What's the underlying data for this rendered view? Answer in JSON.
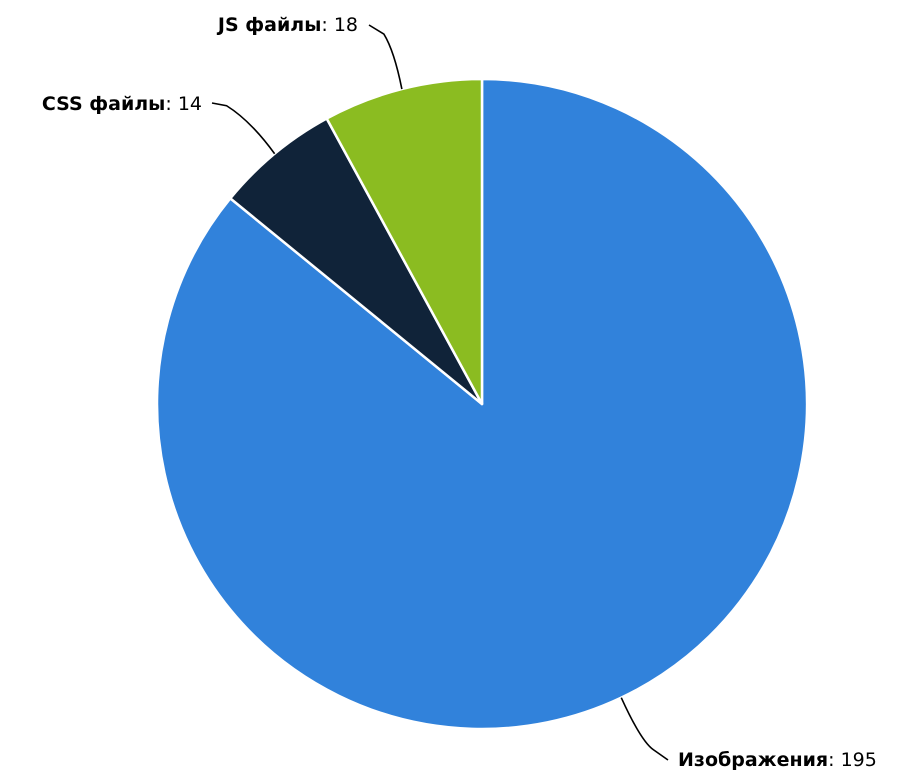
{
  "chart_data": {
    "type": "pie",
    "categories": [
      "Изображения",
      "CSS файлы",
      "JS файлы"
    ],
    "values": [
      195,
      14,
      18
    ],
    "colors": [
      "#3182db",
      "#102339",
      "#8bbc21"
    ],
    "label_separator": ": ",
    "start_angle_deg": 0,
    "direction": "clockwise",
    "legend": "none",
    "grid": false
  }
}
